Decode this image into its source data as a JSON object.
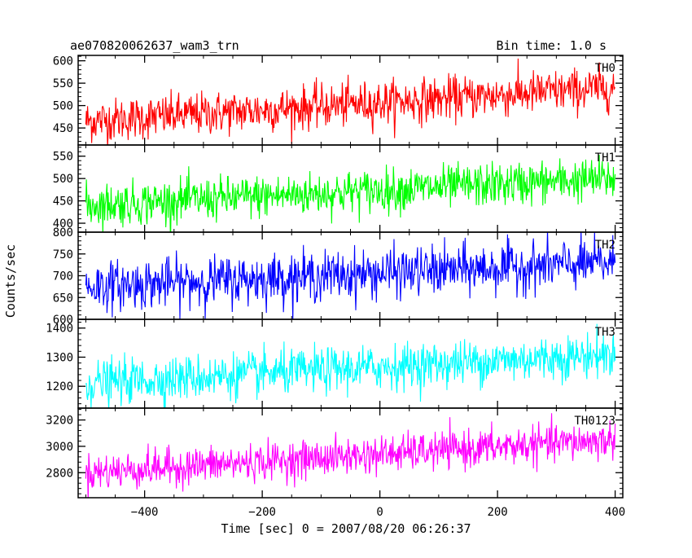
{
  "header": {
    "left_title": "ae070820062637_wam3_trn",
    "right_title": "Bin time: 1.0 s"
  },
  "chart_data": {
    "type": "line",
    "title": "ae070820062637_wam3_trn",
    "subtitle": "Bin time: 1.0 s",
    "xlabel": "Time [sec] 0 = 2007/08/20 06:26:37",
    "ylabel": "Counts/sec",
    "xlim": [
      -513,
      413
    ],
    "x_ticks": [
      -400,
      -200,
      0,
      200,
      400
    ],
    "x_tick_labels": [
      "−400",
      "−200",
      "0",
      "200",
      "400"
    ],
    "x_range_data": [
      -500,
      400
    ],
    "grid": false,
    "legend": "none",
    "panels": [
      {
        "name": "TH0",
        "color": "#ff0000",
        "ylim": [
          412,
          612
        ],
        "y_ticks": [
          450,
          500,
          550,
          600
        ],
        "trend_start": 465,
        "trend_end": 540,
        "noise_sd": 24
      },
      {
        "name": "TH1",
        "color": "#00ff00",
        "ylim": [
          380,
          575
        ],
        "y_ticks": [
          400,
          450,
          500,
          550
        ],
        "trend_start": 440,
        "trend_end": 500,
        "noise_sd": 24
      },
      {
        "name": "TH2",
        "color": "#0000ff",
        "ylim": [
          600,
          800
        ],
        "y_ticks": [
          600,
          650,
          700,
          750,
          800
        ],
        "trend_start": 675,
        "trend_end": 730,
        "noise_sd": 28
      },
      {
        "name": "TH3",
        "color": "#00ffff",
        "ylim": [
          1125,
          1430
        ],
        "y_ticks": [
          1200,
          1300,
          1400
        ],
        "trend_start": 1210,
        "trend_end": 1310,
        "noise_sd": 38
      },
      {
        "name": "TH0123",
        "color": "#ff00ff",
        "ylim": [
          2610,
          3290
        ],
        "y_ticks": [
          2800,
          3000,
          3200
        ],
        "trend_start": 2800,
        "trend_end": 3050,
        "noise_sd": 70
      }
    ]
  }
}
